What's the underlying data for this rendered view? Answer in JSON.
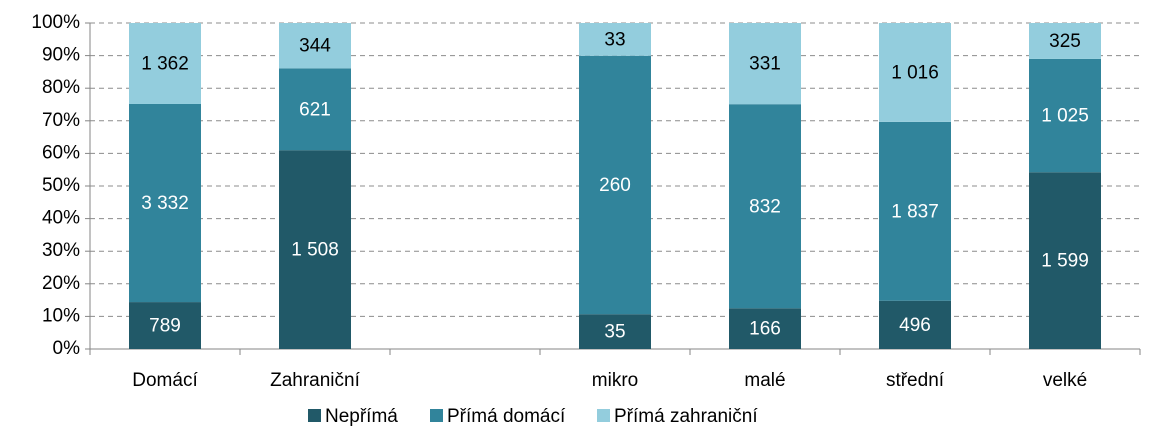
{
  "chart_data": {
    "type": "bar",
    "stacking": "percent",
    "categories": [
      "Domácí",
      "Zahraniční",
      null,
      "mikro",
      "malé",
      "střední",
      "velké"
    ],
    "series": [
      {
        "name": "Nepřímá",
        "color": "#215968",
        "label_color": "#ffffff",
        "values": [
          789,
          1508,
          null,
          35,
          166,
          496,
          1599
        ],
        "value_labels": [
          "789",
          "1 508",
          null,
          "35",
          "166",
          "496",
          "1 599"
        ]
      },
      {
        "name": "Přímá domácí",
        "color": "#31849b",
        "label_color": "#ffffff",
        "values": [
          3332,
          621,
          null,
          260,
          832,
          1837,
          1025
        ],
        "value_labels": [
          "3 332",
          "621",
          null,
          "260",
          "832",
          "1 837",
          "1 025"
        ]
      },
      {
        "name": "Přímá zahraniční",
        "color": "#93cddd",
        "label_color": "#000000",
        "values": [
          1362,
          344,
          null,
          33,
          331,
          1016,
          325
        ],
        "value_labels": [
          "1 362",
          "344",
          null,
          "33",
          "331",
          "1 016",
          "325"
        ]
      }
    ],
    "ylim": [
      0,
      100
    ],
    "yticks": [
      {
        "value": 0,
        "label": "0%"
      },
      {
        "value": 10,
        "label": "10%"
      },
      {
        "value": 20,
        "label": "20%"
      },
      {
        "value": 30,
        "label": "30%"
      },
      {
        "value": 40,
        "label": "40%"
      },
      {
        "value": 50,
        "label": "50%"
      },
      {
        "value": 60,
        "label": "60%"
      },
      {
        "value": 70,
        "label": "70%"
      },
      {
        "value": 80,
        "label": "80%"
      },
      {
        "value": 90,
        "label": "90%"
      },
      {
        "value": 100,
        "label": "100%"
      }
    ],
    "grid": true,
    "legend": "bottom"
  }
}
